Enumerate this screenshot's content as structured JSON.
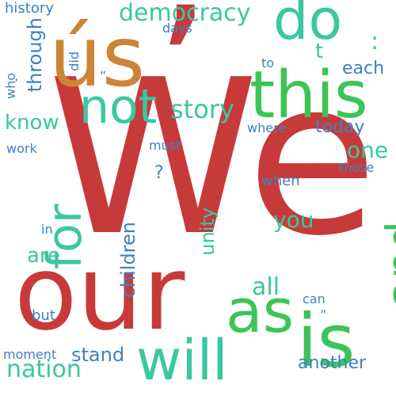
{
  "words": {
    "we": "We",
    "our": "our",
    "apostrophe": "’",
    "us": "ús",
    "this": "this",
    "do": "do",
    "not": "not",
    "is": "is",
    "as": "as",
    "will": "will",
    "and": "and",
    "for": "for",
    "democracy": "democracy",
    "story": "story",
    "know": "know",
    "nation": "nation",
    "children": "children",
    "all": "all",
    "you": "you",
    "one": "one",
    "each": "each",
    "today": "today",
    "through": "through",
    "unity": "unity",
    "are": "are",
    "stand": "stand",
    "another": "another",
    "history": "history",
    "days": "days",
    "did": "did",
    "to": "to",
    "who": "who",
    "work": "work",
    "where": "where",
    "must": "must",
    "when": "when",
    "those": "those",
    "in": "in",
    "but": "but",
    "can": "can",
    "moment": "moment",
    "t": "t",
    "question": "?",
    "colon": ":",
    "quote_left": "“",
    "quote_right": "”",
    "apos_small": "’"
  },
  "palette": {
    "red": "#c73a3a",
    "orange": "#cd8439",
    "green": "#3cc456",
    "teal": "#39c8a0",
    "blue": "#3b82c0"
  }
}
